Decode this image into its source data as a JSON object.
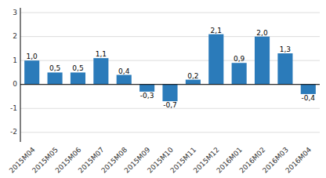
{
  "chart_data": {
    "type": "bar",
    "categories": [
      "2015M04",
      "2015M05",
      "2015M06",
      "2015M07",
      "2015M08",
      "2015M09",
      "2015M10",
      "2015M11",
      "2015M12",
      "2016M01",
      "2016M02",
      "2016M03",
      "2016M04"
    ],
    "values": [
      1.0,
      0.5,
      0.5,
      1.1,
      0.4,
      -0.3,
      -0.7,
      0.2,
      2.1,
      0.9,
      2.0,
      1.3,
      -0.4
    ],
    "value_labels": [
      "1,0",
      "0,5",
      "0,5",
      "1,1",
      "0,4",
      "-0,3",
      "-0,7",
      "0,2",
      "2,1",
      "0,9",
      "2,0",
      "1,3",
      "-0,4"
    ],
    "color": "#2b7bba",
    "ylim": [
      -2.4,
      3.2
    ],
    "yticks": [
      -2,
      -1,
      0,
      1,
      2,
      3
    ],
    "grid": true,
    "data_labels": true
  }
}
